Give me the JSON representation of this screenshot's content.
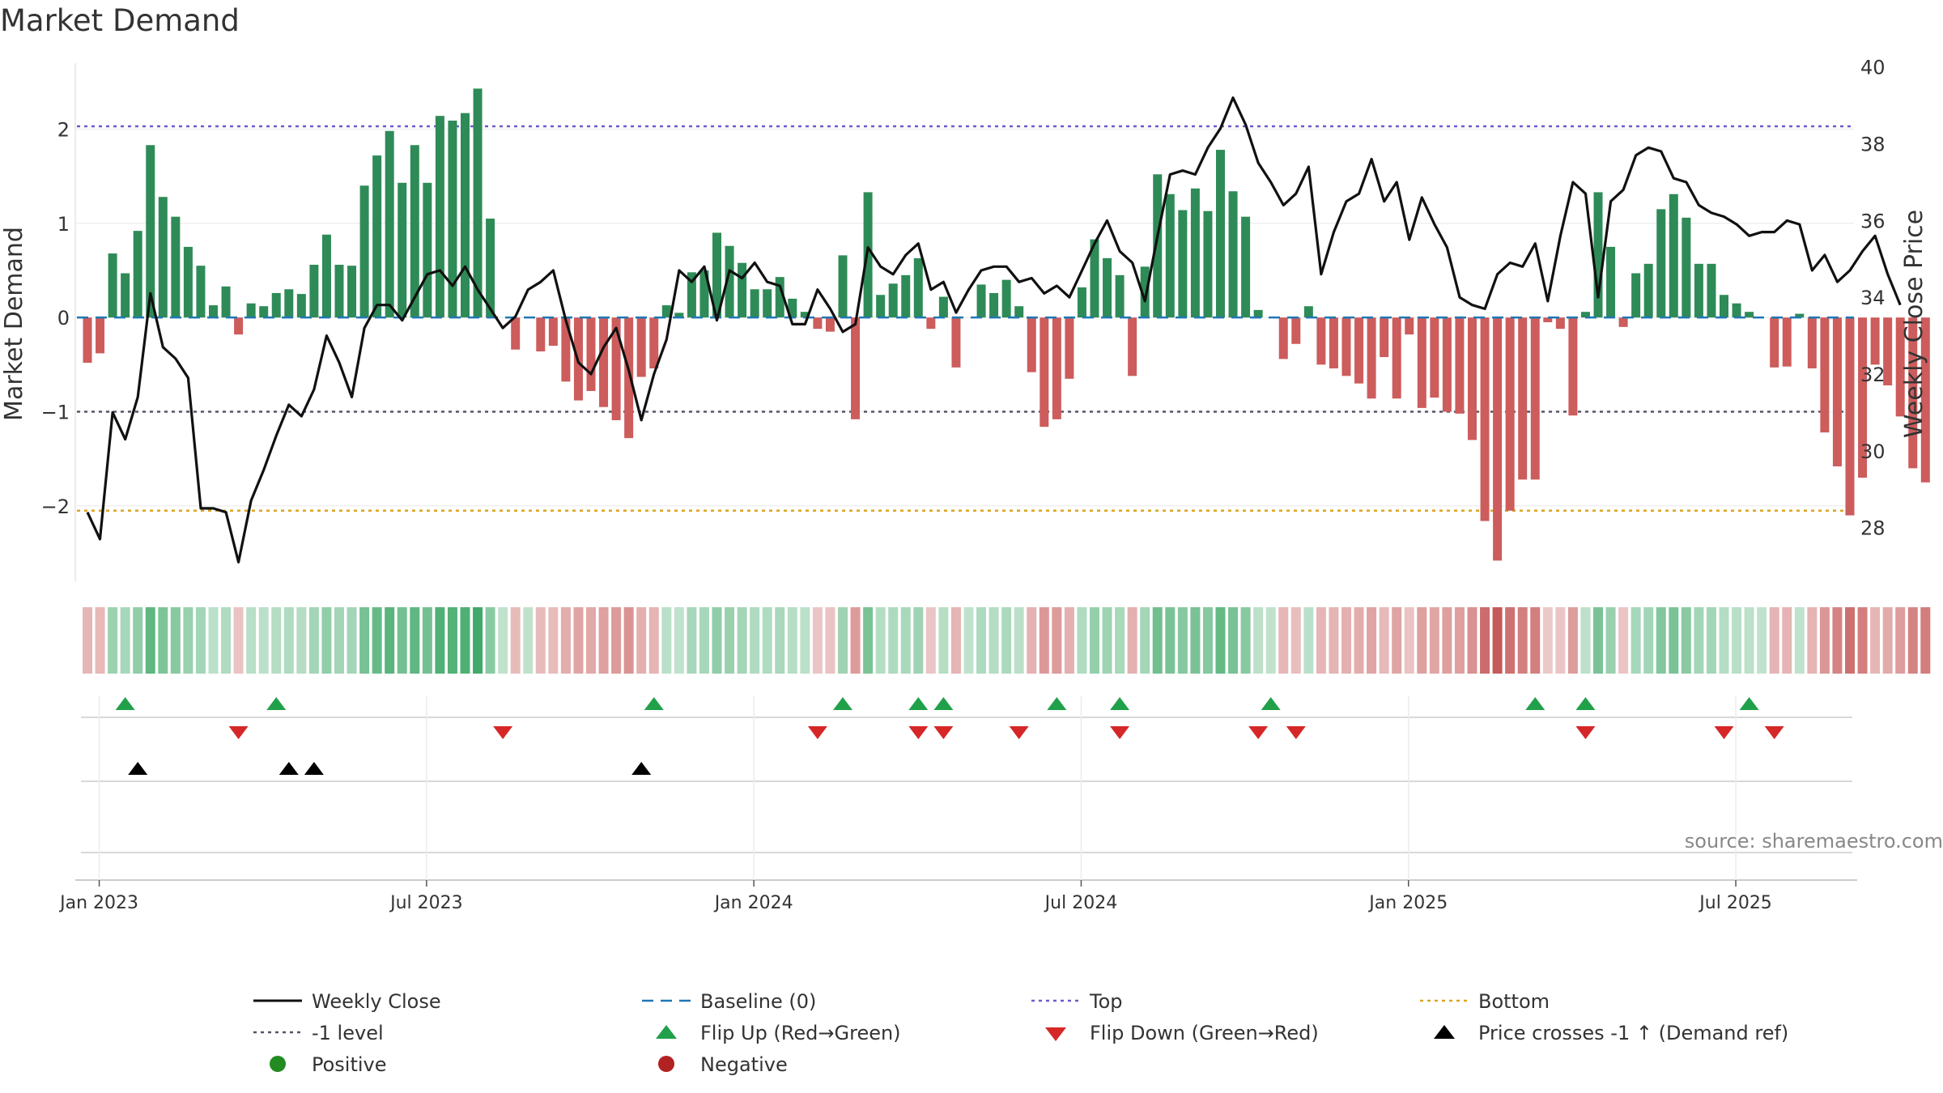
{
  "title": "Market Demand",
  "source": "source: sharemaestro.com",
  "chart_data": {
    "type": "bar",
    "title": "Market Demand",
    "ylabel_left": "Market Demand",
    "ylabel_right": "Weekly Close Price",
    "left_ylim": [
      -2.8,
      2.7
    ],
    "right_ylim": [
      26.6,
      40.1
    ],
    "left_ticks": [
      {
        "v": 2,
        "label": "2"
      },
      {
        "v": 1,
        "label": "1"
      },
      {
        "v": 0,
        "label": "0"
      },
      {
        "v": -1,
        "label": "−1"
      },
      {
        "v": -2,
        "label": "−2"
      }
    ],
    "right_ticks": [
      {
        "v": 40,
        "label": "40"
      },
      {
        "v": 38,
        "label": "38"
      },
      {
        "v": 36,
        "label": "36"
      },
      {
        "v": 34,
        "label": "34"
      },
      {
        "v": 32,
        "label": "32"
      },
      {
        "v": 30,
        "label": "30"
      },
      {
        "v": 28,
        "label": "28"
      }
    ],
    "x_ticks": [
      {
        "i": 1,
        "label": "Jan 2023"
      },
      {
        "i": 27,
        "label": "Jul 2023"
      },
      {
        "i": 53,
        "label": "Jan 2024"
      },
      {
        "i": 79,
        "label": "Jul 2024"
      },
      {
        "i": 105,
        "label": "Jan 2025"
      },
      {
        "i": 131,
        "label": "Jul 2025"
      }
    ],
    "start_week": "2022-12-25",
    "reference_levels": {
      "baseline": 0,
      "top": 2.03,
      "minus_one": -1,
      "bottom": -2.05
    },
    "demand": [
      -0.48,
      -0.38,
      0.68,
      0.47,
      0.92,
      1.83,
      1.28,
      1.07,
      0.75,
      0.55,
      0.13,
      0.33,
      -0.18,
      0.15,
      0.12,
      0.26,
      0.3,
      0.25,
      0.56,
      0.88,
      0.56,
      0.55,
      1.4,
      1.72,
      1.98,
      1.43,
      1.83,
      1.43,
      2.14,
      2.09,
      2.17,
      2.43,
      1.05,
      0,
      -0.34,
      0,
      -0.36,
      -0.3,
      -0.68,
      -0.88,
      -0.78,
      -0.95,
      -1.09,
      -1.28,
      -0.63,
      -0.54,
      0.13,
      0.05,
      0.48,
      0.5,
      0.9,
      0.76,
      0.58,
      0.3,
      0.3,
      0.43,
      0.2,
      0.06,
      -0.12,
      -0.15,
      0.66,
      -1.08,
      1.33,
      0.24,
      0.36,
      0.45,
      0.63,
      -0.12,
      0.22,
      -0.53,
      0,
      0.35,
      0.26,
      0.4,
      0.12,
      -0.58,
      -1.16,
      -1.08,
      -0.65,
      0.32,
      0.83,
      0.63,
      0.45,
      -0.62,
      0.54,
      1.52,
      1.31,
      1.14,
      1.37,
      1.13,
      1.78,
      1.34,
      1.07,
      0.08,
      0,
      -0.44,
      -0.28,
      0.12,
      -0.5,
      -0.54,
      -0.62,
      -0.7,
      -0.86,
      -0.42,
      -0.86,
      -0.18,
      -0.96,
      -0.85,
      -1.0,
      -1.02,
      -1.3,
      -2.16,
      -2.58,
      -2.05,
      -1.72,
      -1.72,
      -0.05,
      -0.12,
      -1.04,
      0.06,
      1.33,
      0.75,
      -0.1,
      0.47,
      0.57,
      1.15,
      1.31,
      1.06,
      0.57,
      0.57,
      0.24,
      0.15,
      0.06,
      0,
      -0.53,
      -0.52,
      0.04,
      -0.54,
      -1.22,
      -1.58,
      -2.1,
      -1.7,
      -0.5,
      -0.72,
      -1.05,
      -1.6,
      -1.75
    ],
    "price": [
      28.4,
      27.7,
      31.0,
      30.3,
      31.4,
      34.1,
      32.7,
      32.4,
      31.9,
      28.5,
      28.5,
      28.4,
      27.1,
      28.7,
      29.5,
      30.4,
      31.2,
      30.9,
      31.6,
      33.0,
      32.3,
      31.4,
      33.2,
      33.8,
      33.8,
      33.4,
      34.0,
      34.6,
      34.7,
      34.3,
      34.8,
      34.2,
      33.7,
      33.2,
      33.5,
      34.2,
      34.4,
      34.7,
      33.4,
      32.3,
      32.0,
      32.7,
      33.2,
      32.1,
      30.8,
      32.0,
      32.9,
      34.7,
      34.4,
      34.8,
      33.4,
      34.7,
      34.5,
      34.9,
      34.4,
      34.3,
      33.3,
      33.3,
      34.2,
      33.7,
      33.1,
      33.3,
      35.3,
      34.8,
      34.6,
      35.1,
      35.4,
      34.2,
      34.4,
      33.6,
      34.2,
      34.7,
      34.8,
      34.8,
      34.4,
      34.5,
      34.1,
      34.3,
      34.0,
      34.7,
      35.4,
      36.0,
      35.2,
      34.9,
      33.9,
      35.6,
      37.2,
      37.3,
      37.2,
      37.9,
      38.4,
      39.2,
      38.5,
      37.5,
      37.0,
      36.4,
      36.7,
      37.4,
      34.6,
      35.7,
      36.5,
      36.7,
      37.6,
      36.5,
      37.0,
      35.5,
      36.6,
      35.9,
      35.3,
      34.0,
      33.8,
      33.7,
      34.6,
      34.9,
      34.8,
      35.4,
      33.9,
      35.6,
      37.0,
      36.7,
      34.0,
      36.5,
      36.8,
      37.7,
      37.9,
      37.8,
      37.1,
      37.0,
      36.4,
      36.2,
      36.1,
      35.9,
      35.6,
      35.7,
      35.7,
      36.0,
      35.9,
      34.7,
      35.1,
      34.4,
      34.7,
      35.2,
      35.6,
      34.6,
      33.8
    ],
    "flip_up": [
      3,
      15,
      45,
      60,
      66,
      68,
      77,
      82,
      94,
      115,
      119,
      132
    ],
    "flip_down": [
      12,
      33,
      58,
      66,
      68,
      74,
      82,
      93,
      96,
      119,
      130,
      134
    ],
    "price_cross_up": [
      4,
      16,
      18,
      44
    ]
  },
  "legend": {
    "weekly_close": "Weekly Close",
    "baseline": "Baseline (0)",
    "top": "Top",
    "bottom": "Bottom",
    "minus_one": "-1 level",
    "flip_up": "Flip Up (Red→Green)",
    "flip_down": "Flip Down (Green→Red)",
    "price_cross": "Price crosses -1 ↑ (Demand ref)",
    "positive": "Positive",
    "negative": "Negative"
  },
  "colors": {
    "positive_bar": "#2e8b57",
    "negative_bar": "#cd5c5c",
    "price_line": "#111111",
    "baseline": "#1f77b4",
    "top": "#6a5acd",
    "bottom": "#daa520",
    "minus_one": "#555566",
    "flip_up": "#21a04a",
    "flip_down": "#d62728",
    "price_cross": "#000000",
    "positive_dot": "#228b22",
    "negative_dot": "#b22222"
  }
}
